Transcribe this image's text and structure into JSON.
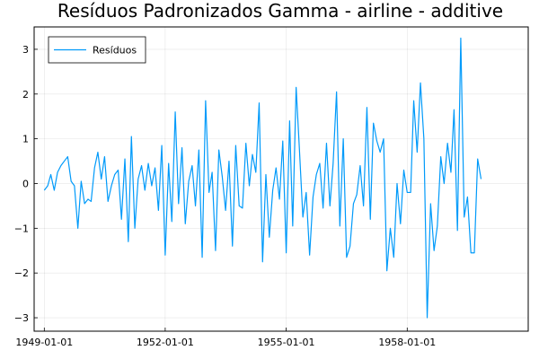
{
  "chart_data": {
    "type": "line",
    "title": "Resíduos Padronizados Gamma - airline - additive",
    "xlabel": "",
    "ylabel": "",
    "x_start": "1949-01-01",
    "x_frequency": "monthly",
    "xlim": [
      "1948-10-01",
      "1961-01-01"
    ],
    "ylim": [
      -3.3,
      3.5
    ],
    "xticks": [
      "1949-01-01",
      "1952-01-01",
      "1955-01-01",
      "1958-01-01"
    ],
    "yticks": [
      -3,
      -2,
      -1,
      0,
      1,
      2,
      3
    ],
    "grid": true,
    "legend": "top-left",
    "series": [
      {
        "name": "Resíduos",
        "color": "#009AFA",
        "values": [
          -0.15,
          -0.05,
          0.2,
          -0.15,
          0.25,
          0.4,
          0.5,
          0.6,
          0.05,
          -0.05,
          -1.0,
          0.05,
          -0.45,
          -0.35,
          -0.4,
          0.35,
          0.7,
          0.1,
          0.6,
          -0.4,
          -0.05,
          0.2,
          0.3,
          -0.8,
          0.55,
          -1.3,
          1.05,
          -1.0,
          0.1,
          0.4,
          -0.15,
          0.45,
          -0.05,
          0.35,
          -0.6,
          0.85,
          -1.6,
          0.45,
          -0.85,
          1.6,
          -0.45,
          0.8,
          -0.9,
          0.05,
          0.4,
          -0.5,
          0.75,
          -1.65,
          1.85,
          -0.2,
          0.25,
          -1.5,
          0.75,
          0.15,
          -0.6,
          0.5,
          -1.4,
          0.85,
          -0.5,
          -0.55,
          0.9,
          -0.05,
          0.65,
          0.25,
          1.8,
          -1.75,
          0.2,
          -1.2,
          -0.15,
          0.35,
          -0.35,
          0.95,
          -1.55,
          1.4,
          -0.95,
          2.15,
          0.75,
          -0.75,
          -0.2,
          -1.6,
          -0.3,
          0.2,
          0.45,
          -0.55,
          0.9,
          -0.5,
          0.45,
          2.05,
          -0.95,
          1.0,
          -1.65,
          -1.4,
          -0.45,
          -0.25,
          0.4,
          -0.5,
          1.7,
          -0.8,
          1.35,
          0.95,
          0.7,
          1.0,
          -1.95,
          -1.0,
          -1.65,
          0.0,
          -0.9,
          0.3,
          -0.2,
          -0.2,
          1.85,
          0.7,
          2.25,
          1.0,
          -3.0,
          -0.45,
          -1.5,
          -0.95,
          0.6,
          0.0,
          0.9,
          0.25,
          1.65,
          -1.05,
          3.25,
          -0.75,
          -0.3,
          -1.55,
          -1.55,
          0.55,
          0.1
        ]
      }
    ]
  }
}
